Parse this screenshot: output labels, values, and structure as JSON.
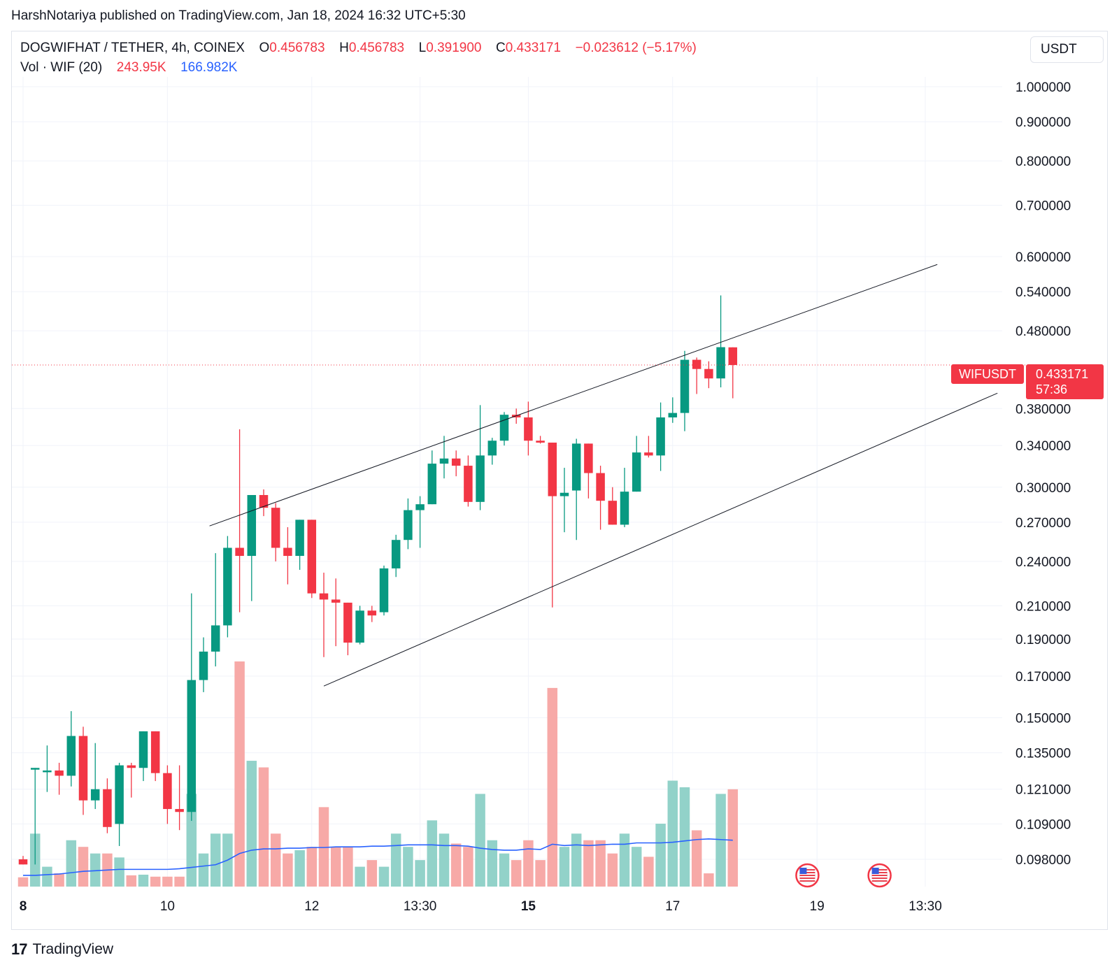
{
  "publish_line": "HarshNotariya published on TradingView.com, Jan 18, 2024 16:32 UTC+5:30",
  "legend": {
    "symbol": "DOGWIFHAT / TETHER, 4h, COINEX",
    "o_label": "O",
    "o_value": "0.456783",
    "h_label": "H",
    "h_value": "0.456783",
    "l_label": "L",
    "l_value": "0.391900",
    "c_label": "C",
    "c_value": "0.433171",
    "change": "−0.023612 (−5.17%)",
    "vol_label": "Vol · WIF (20)",
    "vol_value": "243.95K",
    "vol_ma": "166.982K"
  },
  "currency": "USDT",
  "symbol_tag": "WIFUSDT",
  "last_price": "0.433171",
  "countdown": "57:36",
  "footer_brand": "TradingView",
  "colors": {
    "up": "#089981",
    "down": "#f23645",
    "vol_up": "#92d2c9",
    "vol_down": "#f7a9a7",
    "vol_ma": "#2962ff",
    "grid": "#f0f3fa"
  },
  "chart_data": {
    "type": "candlestick",
    "interval": "4h",
    "y_scale": "log",
    "y_ticks": [
      "1.000000",
      "0.900000",
      "0.800000",
      "0.700000",
      "0.600000",
      "0.540000",
      "0.480000",
      "0.380000",
      "0.340000",
      "0.300000",
      "0.270000",
      "0.240000",
      "0.210000",
      "0.190000",
      "0.170000",
      "0.150000",
      "0.135000",
      "0.121000",
      "0.109000",
      "0.098000"
    ],
    "x_ticks": [
      {
        "label": "8",
        "bold": true,
        "t": 0
      },
      {
        "label": "10",
        "bold": false,
        "t": 12
      },
      {
        "label": "12",
        "bold": false,
        "t": 24
      },
      {
        "label": "13:30",
        "bold": false,
        "t": 33
      },
      {
        "label": "15",
        "bold": true,
        "t": 42
      },
      {
        "label": "17",
        "bold": false,
        "t": 54
      },
      {
        "label": "19",
        "bold": false,
        "t": 66
      },
      {
        "label": "13:30",
        "bold": false,
        "t": 75
      }
    ],
    "candles": [
      {
        "o": 0.098,
        "h": 0.099,
        "l": 0.0965,
        "c": 0.0965,
        "v": 14
      },
      {
        "o": 0.129,
        "h": 0.129,
        "l": 0.0965,
        "c": 0.129,
        "v": 80
      },
      {
        "o": 0.128,
        "h": 0.138,
        "l": 0.12,
        "c": 0.128,
        "v": 30
      },
      {
        "o": 0.128,
        "h": 0.131,
        "l": 0.119,
        "c": 0.126,
        "v": 20
      },
      {
        "o": 0.126,
        "h": 0.153,
        "l": 0.122,
        "c": 0.142,
        "v": 70
      },
      {
        "o": 0.142,
        "h": 0.146,
        "l": 0.112,
        "c": 0.117,
        "v": 60
      },
      {
        "o": 0.117,
        "h": 0.139,
        "l": 0.114,
        "c": 0.121,
        "v": 50
      },
      {
        "o": 0.121,
        "h": 0.125,
        "l": 0.106,
        "c": 0.108,
        "v": 50
      },
      {
        "o": 0.109,
        "h": 0.131,
        "l": 0.102,
        "c": 0.13,
        "v": 44
      },
      {
        "o": 0.13,
        "h": 0.131,
        "l": 0.118,
        "c": 0.129,
        "v": 17
      },
      {
        "o": 0.129,
        "h": 0.144,
        "l": 0.124,
        "c": 0.144,
        "v": 18
      },
      {
        "o": 0.144,
        "h": 0.144,
        "l": 0.124,
        "c": 0.127,
        "v": 15
      },
      {
        "o": 0.127,
        "h": 0.13,
        "l": 0.109,
        "c": 0.114,
        "v": 15
      },
      {
        "o": 0.114,
        "h": 0.13,
        "l": 0.107,
        "c": 0.113,
        "v": 15
      },
      {
        "o": 0.113,
        "h": 0.218,
        "l": 0.11,
        "c": 0.168,
        "v": 140
      },
      {
        "o": 0.168,
        "h": 0.191,
        "l": 0.162,
        "c": 0.183,
        "v": 50
      },
      {
        "o": 0.183,
        "h": 0.246,
        "l": 0.175,
        "c": 0.198,
        "v": 80
      },
      {
        "o": 0.198,
        "h": 0.259,
        "l": 0.191,
        "c": 0.25,
        "v": 80
      },
      {
        "o": 0.25,
        "h": 0.357,
        "l": 0.206,
        "c": 0.244,
        "v": 340
      },
      {
        "o": 0.244,
        "h": 0.293,
        "l": 0.213,
        "c": 0.293,
        "v": 190
      },
      {
        "o": 0.293,
        "h": 0.298,
        "l": 0.275,
        "c": 0.282,
        "v": 180
      },
      {
        "o": 0.282,
        "h": 0.286,
        "l": 0.24,
        "c": 0.25,
        "v": 80
      },
      {
        "o": 0.25,
        "h": 0.266,
        "l": 0.224,
        "c": 0.244,
        "v": 50
      },
      {
        "o": 0.244,
        "h": 0.272,
        "l": 0.234,
        "c": 0.272,
        "v": 55
      },
      {
        "o": 0.272,
        "h": 0.272,
        "l": 0.215,
        "c": 0.218,
        "v": 60
      },
      {
        "o": 0.218,
        "h": 0.232,
        "l": 0.18,
        "c": 0.214,
        "v": 120
      },
      {
        "o": 0.214,
        "h": 0.228,
        "l": 0.186,
        "c": 0.212,
        "v": 60
      },
      {
        "o": 0.212,
        "h": 0.212,
        "l": 0.181,
        "c": 0.188,
        "v": 60
      },
      {
        "o": 0.188,
        "h": 0.21,
        "l": 0.187,
        "c": 0.207,
        "v": 30
      },
      {
        "o": 0.207,
        "h": 0.21,
        "l": 0.2,
        "c": 0.204,
        "v": 40
      },
      {
        "o": 0.206,
        "h": 0.237,
        "l": 0.204,
        "c": 0.235,
        "v": 30
      },
      {
        "o": 0.235,
        "h": 0.26,
        "l": 0.229,
        "c": 0.256,
        "v": 80
      },
      {
        "o": 0.256,
        "h": 0.29,
        "l": 0.249,
        "c": 0.28,
        "v": 60
      },
      {
        "o": 0.28,
        "h": 0.292,
        "l": 0.25,
        "c": 0.285,
        "v": 40
      },
      {
        "o": 0.285,
        "h": 0.335,
        "l": 0.285,
        "c": 0.322,
        "v": 100
      },
      {
        "o": 0.322,
        "h": 0.35,
        "l": 0.308,
        "c": 0.327,
        "v": 80
      },
      {
        "o": 0.327,
        "h": 0.335,
        "l": 0.31,
        "c": 0.32,
        "v": 65
      },
      {
        "o": 0.32,
        "h": 0.33,
        "l": 0.283,
        "c": 0.287,
        "v": 60
      },
      {
        "o": 0.287,
        "h": 0.384,
        "l": 0.28,
        "c": 0.33,
        "v": 140
      },
      {
        "o": 0.33,
        "h": 0.348,
        "l": 0.321,
        "c": 0.345,
        "v": 70
      },
      {
        "o": 0.345,
        "h": 0.376,
        "l": 0.34,
        "c": 0.373,
        "v": 50
      },
      {
        "o": 0.373,
        "h": 0.38,
        "l": 0.363,
        "c": 0.37,
        "v": 40
      },
      {
        "o": 0.37,
        "h": 0.388,
        "l": 0.33,
        "c": 0.345,
        "v": 70
      },
      {
        "o": 0.345,
        "h": 0.35,
        "l": 0.342,
        "c": 0.343,
        "v": 40
      },
      {
        "o": 0.343,
        "h": 0.343,
        "l": 0.209,
        "c": 0.292,
        "v": 300
      },
      {
        "o": 0.292,
        "h": 0.318,
        "l": 0.262,
        "c": 0.295,
        "v": 60
      },
      {
        "o": 0.297,
        "h": 0.347,
        "l": 0.256,
        "c": 0.342,
        "v": 80
      },
      {
        "o": 0.342,
        "h": 0.342,
        "l": 0.29,
        "c": 0.313,
        "v": 70
      },
      {
        "o": 0.313,
        "h": 0.32,
        "l": 0.264,
        "c": 0.288,
        "v": 70
      },
      {
        "o": 0.288,
        "h": 0.3,
        "l": 0.268,
        "c": 0.268,
        "v": 50
      },
      {
        "o": 0.268,
        "h": 0.318,
        "l": 0.266,
        "c": 0.296,
        "v": 80
      },
      {
        "o": 0.296,
        "h": 0.35,
        "l": 0.296,
        "c": 0.333,
        "v": 60
      },
      {
        "o": 0.333,
        "h": 0.35,
        "l": 0.328,
        "c": 0.33,
        "v": 45
      },
      {
        "o": 0.33,
        "h": 0.387,
        "l": 0.315,
        "c": 0.37,
        "v": 95
      },
      {
        "o": 0.37,
        "h": 0.393,
        "l": 0.364,
        "c": 0.375,
        "v": 160
      },
      {
        "o": 0.375,
        "h": 0.452,
        "l": 0.355,
        "c": 0.44,
        "v": 150
      },
      {
        "o": 0.44,
        "h": 0.443,
        "l": 0.397,
        "c": 0.428,
        "v": 85
      },
      {
        "o": 0.428,
        "h": 0.438,
        "l": 0.404,
        "c": 0.416,
        "v": 20
      },
      {
        "o": 0.416,
        "h": 0.534,
        "l": 0.405,
        "c": 0.457,
        "v": 140
      },
      {
        "o": 0.456783,
        "h": 0.456783,
        "l": 0.3919,
        "c": 0.433171,
        "v": 147
      }
    ],
    "volume_ma": [
      17,
      17,
      18,
      19,
      21,
      23,
      24,
      25,
      26,
      26,
      26,
      26,
      26,
      27,
      29,
      31,
      33,
      40,
      50,
      55,
      57,
      57,
      58,
      58,
      59,
      59,
      60,
      60,
      60,
      61,
      61,
      62,
      63,
      63,
      63,
      62,
      62,
      61,
      58,
      56,
      55,
      55,
      57,
      56,
      64,
      62,
      63,
      62,
      63,
      64,
      64,
      66,
      66,
      66,
      67,
      69,
      71,
      72,
      71,
      70
    ],
    "volume_scale_max": 340,
    "trendlines": [
      {
        "name": "channel-upper",
        "from": {
          "t": 15.5,
          "price": 0.267
        },
        "to": {
          "t": 76,
          "price": 0.586
        }
      },
      {
        "name": "channel-lower",
        "from": {
          "t": 25,
          "price": 0.165
        },
        "to": {
          "t": 81,
          "price": 0.398
        }
      }
    ],
    "current_price_line": 0.433171
  }
}
